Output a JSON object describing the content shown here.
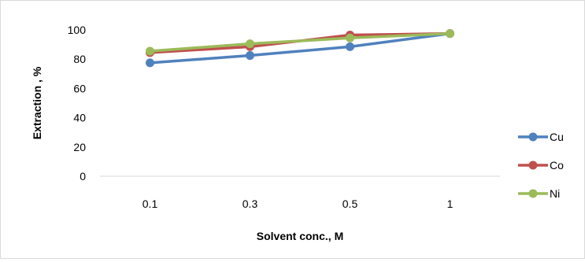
{
  "chart_data": {
    "type": "line",
    "xlabel": "Solvent conc., M",
    "ylabel": "Extraction , %",
    "categories": [
      "0.1",
      "0.3",
      "0.5",
      "1"
    ],
    "ylim": [
      0,
      100
    ],
    "yticks": [
      "0",
      "20",
      "40",
      "60",
      "80",
      "100"
    ],
    "grid": false,
    "legend_position": "right",
    "series": [
      {
        "name": "Cu",
        "color": "#4f81bd",
        "values": [
          77.5,
          82.5,
          88.5,
          97.5
        ]
      },
      {
        "name": "Co",
        "color": "#c0504d",
        "values": [
          84.5,
          88.5,
          96.5,
          97.5
        ]
      },
      {
        "name": "Ni",
        "color": "#9bbb59",
        "values": [
          85.5,
          90.5,
          94.5,
          97.5
        ]
      }
    ]
  }
}
